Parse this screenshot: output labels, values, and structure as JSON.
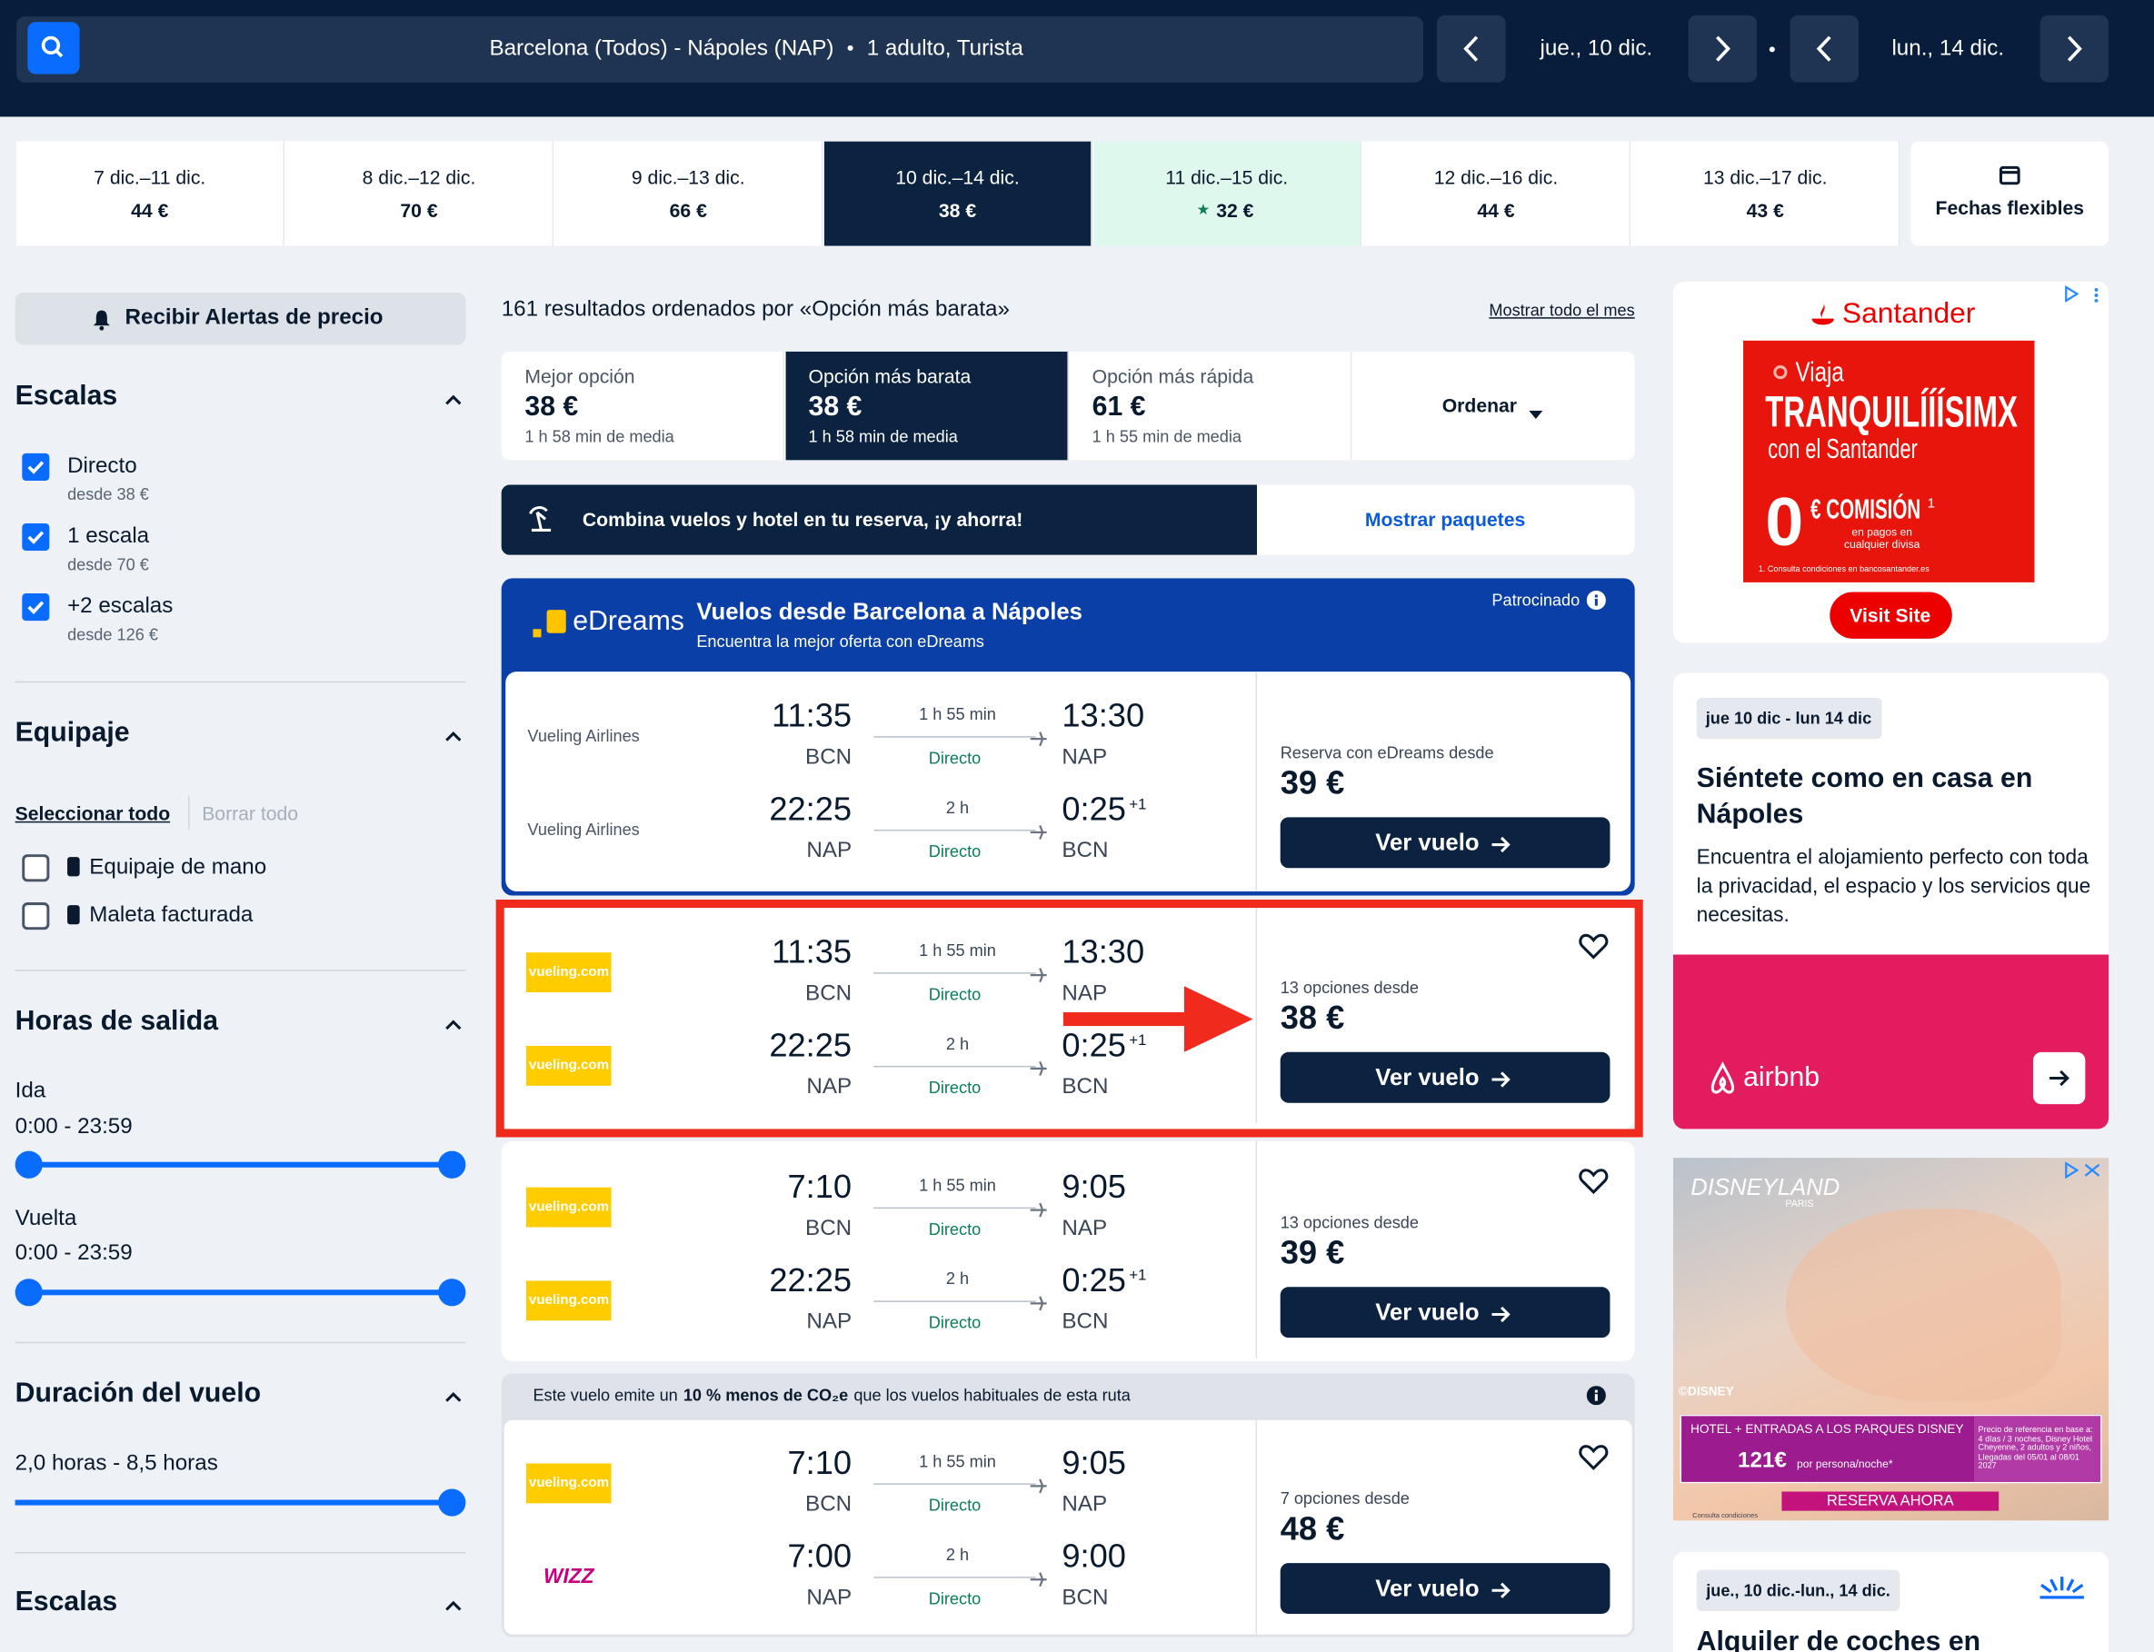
{
  "search": {
    "route": "Barcelona (Todos) - Nápoles (NAP)",
    "passengers": "1 adulto, Turista",
    "depart": "jue., 10 dic.",
    "return": "lun., 14 dic."
  },
  "date_strip": [
    {
      "dates": "7 dic.–11 dic.",
      "price": "44 €"
    },
    {
      "dates": "8 dic.–12 dic.",
      "price": "70 €"
    },
    {
      "dates": "9 dic.–13 dic.",
      "price": "66 €"
    },
    {
      "dates": "10 dic.–14 dic.",
      "price": "38 €"
    },
    {
      "dates": "11 dic.–15 dic.",
      "price": "32 €"
    },
    {
      "dates": "12 dic.–16 dic.",
      "price": "44 €"
    },
    {
      "dates": "13 dic.–17 dic.",
      "price": "43 €"
    }
  ],
  "flexible": "Fechas flexibles",
  "sidebar": {
    "alert": "Recibir Alertas de precio",
    "stops": {
      "title": "Escalas",
      "options": [
        {
          "label": "Directo",
          "from": "desde 38 €"
        },
        {
          "label": "1 escala",
          "from": "desde 70 €"
        },
        {
          "label": "+2 escalas",
          "from": "desde 126 €"
        }
      ]
    },
    "baggage": {
      "title": "Equipaje",
      "select_all": "Seleccionar todo",
      "clear_all": "Borrar todo",
      "options": [
        "Equipaje de mano",
        "Maleta facturada"
      ]
    },
    "departure_times": {
      "title": "Horas de salida",
      "outbound": "Ida",
      "outbound_range": "0:00 - 23:59",
      "return": "Vuelta",
      "return_range": "0:00 - 23:59"
    },
    "duration": {
      "title": "Duración del vuelo",
      "range": "2,0 horas - 8,5 horas"
    },
    "stops_bottom": "Escalas"
  },
  "results": {
    "summary": "161 resultados ordenados por «Opción más barata»",
    "month_link": "Mostrar todo el mes",
    "sort_tabs": [
      {
        "label": "Mejor opción",
        "price": "38 €",
        "duration": "1 h 58 min de media"
      },
      {
        "label": "Opción más barata",
        "price": "38 €",
        "duration": "1 h 58 min de media"
      },
      {
        "label": "Opción más rápida",
        "price": "61 €",
        "duration": "1 h 55 min de media"
      }
    ],
    "sort_button": "Ordenar"
  },
  "promo": {
    "text": "Combina vuelos y hotel en tu reserva, ¡y ahorra!",
    "button": "Mostrar paquetes"
  },
  "sponsored": {
    "brand": "eDreams",
    "title": "Vuelos desde Barcelona a Nápoles",
    "subtitle": "Encuentra la mejor oferta con eDreams",
    "label": "Patrocinado",
    "legs": [
      {
        "airline": "Vueling Airlines",
        "dep": "11:35",
        "dep_code": "BCN",
        "duration": "1 h 55 min",
        "stops": "Directo",
        "arr": "13:30",
        "arr_code": "NAP"
      },
      {
        "airline": "Vueling Airlines",
        "dep": "22:25",
        "dep_code": "NAP",
        "duration": "2 h",
        "stops": "Directo",
        "arr": "0:25",
        "day_offset": "+1",
        "arr_code": "BCN"
      }
    ],
    "price_label": "Reserva con eDreams desde",
    "price": "39 €",
    "button": "Ver vuelo"
  },
  "flights": [
    {
      "legs": [
        {
          "logo": "vueling.com",
          "dep": "11:35",
          "dep_code": "BCN",
          "duration": "1 h 55 min",
          "stops": "Directo",
          "arr": "13:30",
          "arr_code": "NAP"
        },
        {
          "logo": "vueling.com",
          "dep": "22:25",
          "dep_code": "NAP",
          "duration": "2 h",
          "stops": "Directo",
          "arr": "0:25",
          "day_offset": "+1",
          "arr_code": "BCN"
        }
      ],
      "options": "13 opciones desde",
      "price": "38 €",
      "button": "Ver vuelo"
    },
    {
      "legs": [
        {
          "logo": "vueling.com",
          "dep": "7:10",
          "dep_code": "BCN",
          "duration": "1 h 55 min",
          "stops": "Directo",
          "arr": "9:05",
          "arr_code": "NAP"
        },
        {
          "logo": "vueling.com",
          "dep": "22:25",
          "dep_code": "NAP",
          "duration": "2 h",
          "stops": "Directo",
          "arr": "0:25",
          "day_offset": "+1",
          "arr_code": "BCN"
        }
      ],
      "options": "13 opciones desde",
      "price": "39 €",
      "button": "Ver vuelo"
    },
    {
      "note": {
        "prefix": "Este vuelo emite un",
        "highlight": "10 % menos de CO₂e",
        "suffix": "que los vuelos habituales de esta ruta"
      },
      "legs": [
        {
          "logo": "vueling.com",
          "dep": "7:10",
          "dep_code": "BCN",
          "duration": "1 h 55 min",
          "stops": "Directo",
          "arr": "9:05",
          "arr_code": "NAP"
        },
        {
          "logo": "WIZZ",
          "dep": "7:00",
          "dep_code": "NAP",
          "duration": "2 h",
          "stops": "Directo",
          "arr": "9:00",
          "arr_code": "BCN"
        }
      ],
      "options": "7 opciones desde",
      "price": "48 €",
      "button": "Ver vuelo"
    }
  ],
  "ads": {
    "santander": {
      "brand": "Santander",
      "line1": "Viaja",
      "line2": "TRANQUILÍÍÍSIMX",
      "line3": "con el Santander",
      "zero": "0",
      "commission": "€ COMISIÓN",
      "footnote_mark": "1",
      "detail": "en pagos en cualquier divisa",
      "footnote": "1. Consulta condiciones en bancosantander.es",
      "button": "Visit Site"
    },
    "airbnb": {
      "dates": "jue 10 dic - lun 14 dic",
      "title": "Siéntete como en casa en Nápoles",
      "text": "Encuentra el alojamiento perfecto con toda la privacidad, el espacio y los servicios que necesitas.",
      "brand": "airbnb"
    },
    "disney": {
      "brand": "DISNEYLAND",
      "city": "PARIS",
      "copyright": "©DISNEY",
      "offer": "HOTEL + ENTRADAS A LOS PARQUES DISNEY",
      "price": "121€",
      "per": "por persona/noche*",
      "fine_print": "Precio de referencia en base a: 4 días / 3 noches, Disney Hotel Cheyenne, 2 adultos y 2 niños, Llegadas del 05/01 al 08/01 2027",
      "button": "RESERVA AHORA",
      "conditions": "Consulta condiciones"
    },
    "cars": {
      "dates": "jue., 10 dic.-lun., 14 dic.",
      "title": "Alquiler de coches en"
    }
  }
}
